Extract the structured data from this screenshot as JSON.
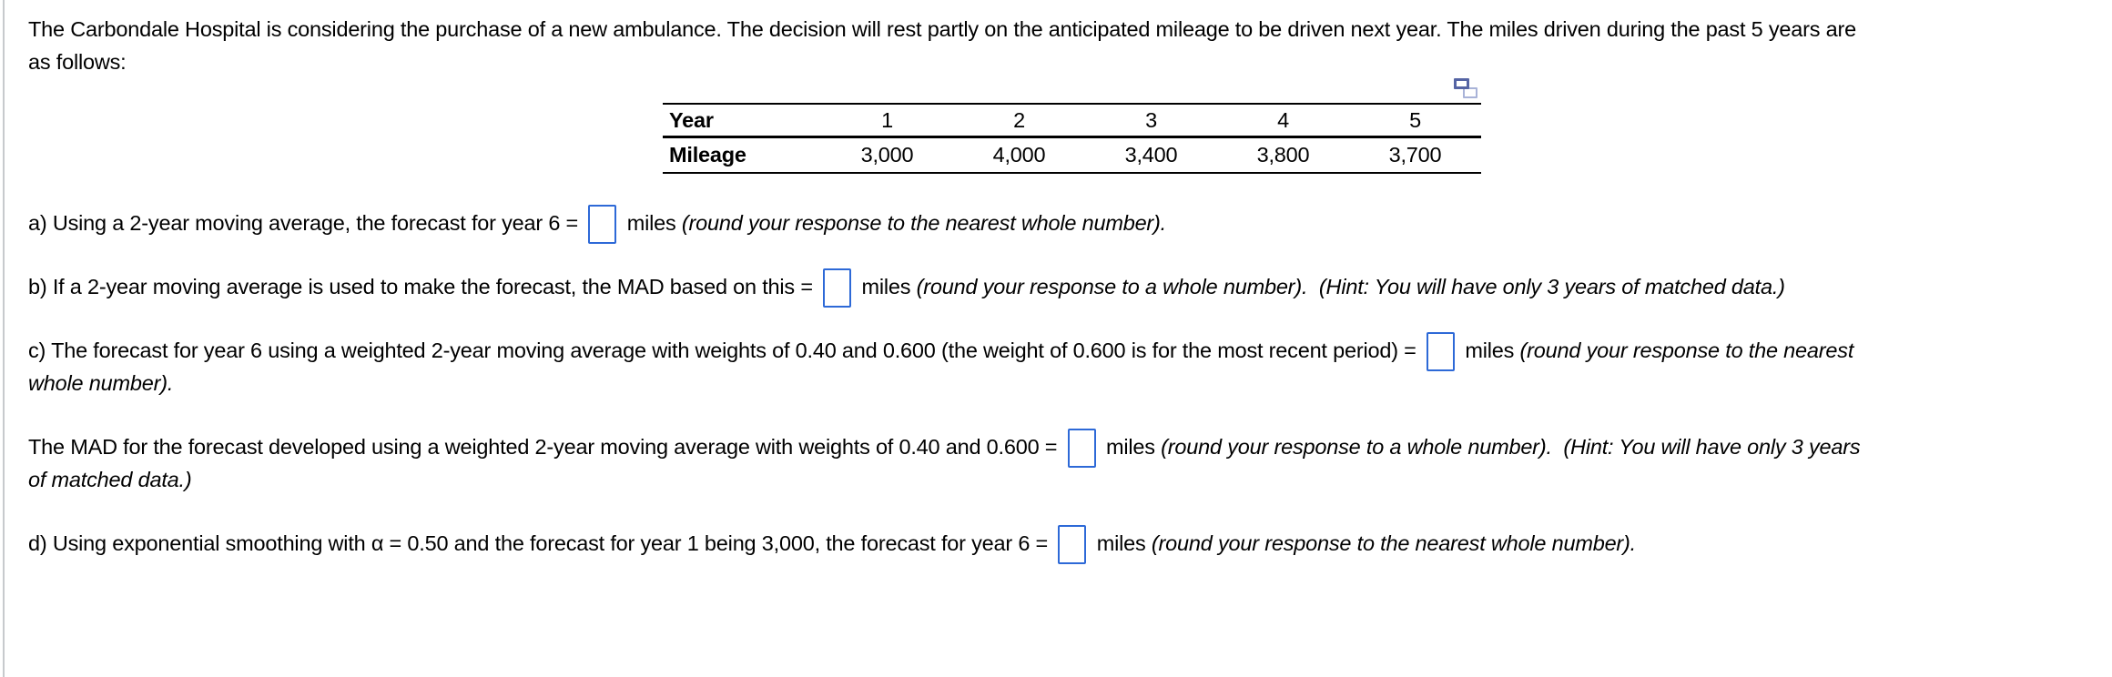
{
  "intro": {
    "segments": [
      {
        "type": "text",
        "text": "The Carbondale Hospital is considering the purchase of a new ambulance. The decision will rest partly on the anticipated mileage to be driven next year. The miles driven during the past 5 years are"
      },
      {
        "type": "br"
      },
      {
        "type": "text",
        "text": "as follows:"
      }
    ]
  },
  "table": {
    "year_label": "Year",
    "mileage_label": "Mileage",
    "years": [
      "1",
      "2",
      "3",
      "4",
      "5"
    ],
    "mileage": [
      "3,000",
      "4,000",
      "3,400",
      "3,800",
      "3,700"
    ]
  },
  "icons": {
    "popout": "popout-window-icon"
  },
  "colors": {
    "answer_box_border": "#2d69d7",
    "table_border": "#000000",
    "left_rule": "#c7cacd",
    "icon_front": "#5564a4",
    "icon_back": "#a9b3d8"
  },
  "questions": {
    "a": {
      "segments": [
        {
          "type": "text",
          "text": "a) Using a 2-year moving average, the forecast for year 6 = "
        },
        {
          "type": "input"
        },
        {
          "type": "text",
          "text": " miles "
        },
        {
          "type": "italic",
          "text": "(round your response to the nearest whole number)."
        }
      ]
    },
    "b": {
      "segments": [
        {
          "type": "text",
          "text": "b) If a 2-year moving average is used to make the forecast, the MAD based on this = "
        },
        {
          "type": "input"
        },
        {
          "type": "text",
          "text": " miles "
        },
        {
          "type": "italic",
          "text": "(round your response to a whole number).  (Hint: You will have only 3 years of matched data.)"
        }
      ]
    },
    "c": {
      "segments": [
        {
          "type": "text",
          "text": "c) The forecast for year 6 using a weighted 2-year moving average with weights of 0.40 and 0.600 (the weight of 0.600 is for the most recent period) = "
        },
        {
          "type": "input"
        },
        {
          "type": "text",
          "text": " miles "
        },
        {
          "type": "italic",
          "text": "(round your response to the nearest"
        },
        {
          "type": "br"
        },
        {
          "type": "italic",
          "text": "whole number)."
        }
      ]
    },
    "c_mad": {
      "segments": [
        {
          "type": "text",
          "text": "The MAD for the forecast developed using a weighted 2-year moving average with weights of 0.40 and 0.600 = "
        },
        {
          "type": "input"
        },
        {
          "type": "text",
          "text": " miles "
        },
        {
          "type": "italic",
          "text": "(round your response to a whole number).  (Hint: You will have only 3 years"
        },
        {
          "type": "br"
        },
        {
          "type": "italic",
          "text": "of matched data.)"
        }
      ]
    },
    "d": {
      "segments": [
        {
          "type": "text",
          "text": "d) Using exponential smoothing with α = 0.50 and the forecast for year 1 being 3,000, the forecast for year 6 = "
        },
        {
          "type": "input"
        },
        {
          "type": "text",
          "text": " miles "
        },
        {
          "type": "italic",
          "text": "(round your response to the nearest whole number)."
        }
      ]
    }
  }
}
